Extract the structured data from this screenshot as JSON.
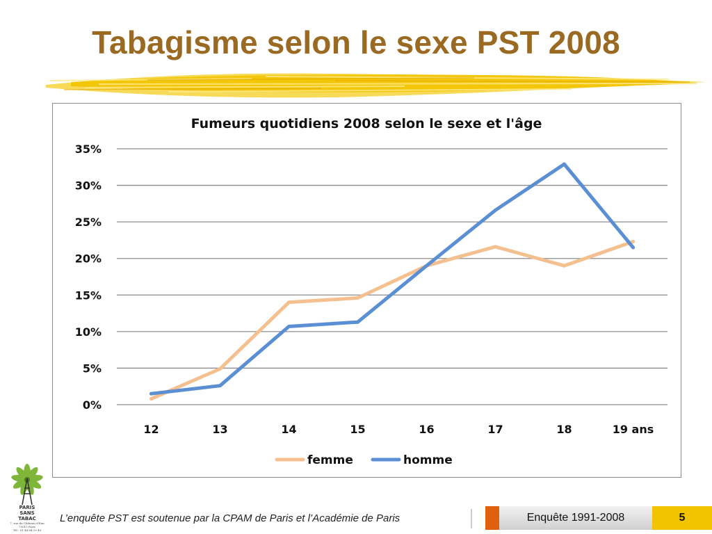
{
  "slide": {
    "title": "Tabagisme selon le sexe PST 2008",
    "accent_color": "#f2c300"
  },
  "footer": {
    "credit": "L’enquête PST est soutenue par la CPAM de Paris et l’Académie de Paris",
    "survey_label": "Enquête 1991-2008",
    "page_number": "5",
    "orange_color": "#e0600c",
    "yellow_color": "#f2c300"
  },
  "logo": {
    "name": "PARIS SANS TABAC",
    "address_lines": [
      "7, rue du Château d'Eau",
      "75010 Paris",
      "Tél : 01 44 84 29 49"
    ]
  },
  "chart_data": {
    "type": "line",
    "title": "Fumeurs quotidiens  2008 selon le sexe et l'âge",
    "xlabel": "",
    "ylabel": "",
    "categories": [
      "12",
      "13",
      "14",
      "15",
      "16",
      "17",
      "18",
      "19 ans"
    ],
    "ylim": [
      0,
      35
    ],
    "yticks": [
      "0%",
      "5%",
      "10%",
      "15%",
      "20%",
      "25%",
      "30%",
      "35%"
    ],
    "grid": true,
    "legend_position": "bottom",
    "series": [
      {
        "name": "femme",
        "color": "#f5c08f",
        "values": [
          0.8,
          4.9,
          14.0,
          14.6,
          19.0,
          21.6,
          19.0,
          22.3
        ]
      },
      {
        "name": "homme",
        "color": "#5b8fd4",
        "values": [
          1.5,
          2.6,
          10.7,
          11.3,
          19.0,
          26.6,
          32.9,
          21.5
        ]
      }
    ]
  }
}
